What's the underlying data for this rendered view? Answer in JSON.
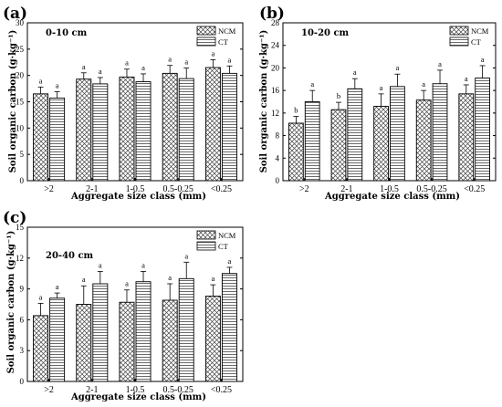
{
  "chart_data": [
    {
      "type": "bar",
      "panel_label": "(a)",
      "depth_label": "0-10 cm",
      "categories": [
        ">2",
        "2-1",
        "1-0.5",
        "0.5-0.25",
        "<0.25"
      ],
      "series": [
        {
          "name": "NCM",
          "values": [
            16.5,
            19.3,
            19.7,
            20.4,
            21.5
          ],
          "errors": [
            1.3,
            1.2,
            1.5,
            1.5,
            1.5
          ],
          "letters": [
            "a",
            "a",
            "a",
            "a",
            "a"
          ]
        },
        {
          "name": "CT",
          "values": [
            15.7,
            18.4,
            18.8,
            19.4,
            20.4
          ],
          "errors": [
            1.2,
            1.2,
            1.5,
            2.0,
            1.4
          ],
          "letters": [
            "a",
            "a",
            "a",
            "a",
            "a"
          ]
        }
      ],
      "xlabel": "Aggregate size class (mm)",
      "ylabel": "Soil organic carbon (g·kg⁻¹)",
      "ylim": [
        0,
        30
      ],
      "yticks": [
        "0",
        "5",
        "10",
        "15",
        "20",
        "25",
        "30"
      ],
      "legend_position": "top-right",
      "grid": false
    },
    {
      "type": "bar",
      "panel_label": "(b)",
      "depth_label": "10-20 cm",
      "categories": [
        ">2",
        "2-1",
        "1-0.5",
        "0.5-0.25",
        "<0.25"
      ],
      "series": [
        {
          "name": "NCM",
          "values": [
            10.2,
            12.6,
            13.2,
            14.3,
            15.4
          ],
          "errors": [
            1.2,
            1.3,
            2.2,
            1.7,
            1.6
          ],
          "letters": [
            "b",
            "b",
            "a",
            "a",
            "a"
          ]
        },
        {
          "name": "CT",
          "values": [
            14.0,
            16.3,
            16.7,
            17.2,
            18.2
          ],
          "errors": [
            2.0,
            1.8,
            2.2,
            2.4,
            2.2
          ],
          "letters": [
            "a",
            "a",
            "a",
            "a",
            "a"
          ]
        }
      ],
      "xlabel": "Aggregate size class (mm)",
      "ylabel": "Soil organic carbon (g·kg⁻¹)",
      "ylim": [
        0,
        28
      ],
      "yticks": [
        "0",
        "4",
        "8",
        "12",
        "16",
        "20",
        "24",
        "28"
      ],
      "legend_position": "top-right",
      "grid": false
    },
    {
      "type": "bar",
      "panel_label": "(c)",
      "depth_label": "20-40 cm",
      "categories": [
        ">2",
        "2-1",
        "1-0.5",
        "0.5-0.25",
        "<0.25"
      ],
      "series": [
        {
          "name": "NCM",
          "values": [
            6.4,
            7.5,
            7.7,
            7.9,
            8.3
          ],
          "errors": [
            1.2,
            1.8,
            1.2,
            1.6,
            1.1
          ],
          "letters": [
            "a",
            "a",
            "a",
            "a",
            "a"
          ]
        },
        {
          "name": "CT",
          "values": [
            8.1,
            9.5,
            9.7,
            10.0,
            10.5
          ],
          "errors": [
            0.5,
            1.2,
            1.0,
            1.6,
            0.6
          ],
          "letters": [
            "a",
            "a",
            "a",
            "a",
            "a"
          ]
        }
      ],
      "xlabel": "Aggregate size class (mm)",
      "ylabel": "Soil organic carbon (g·kg⁻¹)",
      "ylim": [
        0,
        15
      ],
      "yticks": [
        "0",
        "3",
        "6",
        "9",
        "12",
        "15"
      ],
      "legend_position": "top-right",
      "grid": false
    }
  ]
}
